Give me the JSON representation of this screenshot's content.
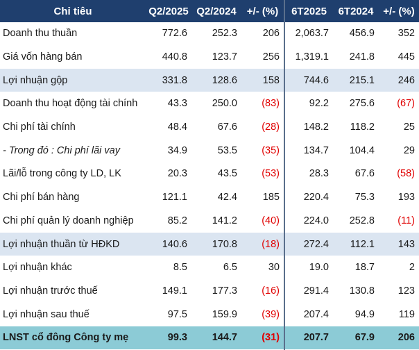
{
  "headers": {
    "name": "Chỉ tiêu",
    "q2_2025": "Q2/2025",
    "q2_2024": "Q2/2024",
    "q_change": "+/- (%)",
    "h1_2025": "6T2025",
    "h1_2024": "6T2024",
    "h_change": "+/- (%)"
  },
  "rows": [
    {
      "name": "Doanh thu thuần",
      "q25": "772.6",
      "q24": "252.3",
      "qc": "206",
      "h25": "2,063.7",
      "h24": "456.9",
      "hc": "352"
    },
    {
      "name": "Giá vốn hàng bán",
      "q25": "440.8",
      "q24": "123.7",
      "qc": "256",
      "h25": "1,319.1",
      "h24": "241.8",
      "hc": "445"
    },
    {
      "name": "Lợi nhuận gộp",
      "q25": "331.8",
      "q24": "128.6",
      "qc": "158",
      "h25": "744.6",
      "h24": "215.1",
      "hc": "246"
    },
    {
      "name": "Doanh thu hoạt động tài chính",
      "q25": "43.3",
      "q24": "250.0",
      "qc": "(83)",
      "h25": "92.2",
      "h24": "275.6",
      "hc": "(67)"
    },
    {
      "name": "Chi phí tài chính",
      "q25": "48.4",
      "q24": "67.6",
      "qc": "(28)",
      "h25": "148.2",
      "h24": "118.2",
      "hc": "25"
    },
    {
      "name": "- Trong đó : Chi phí lãi vay",
      "q25": "34.9",
      "q24": "53.5",
      "qc": "(35)",
      "h25": "134.7",
      "h24": "104.4",
      "hc": "29"
    },
    {
      "name": "Lãi/lỗ trong công ty LD, LK",
      "q25": "20.3",
      "q24": "43.5",
      "qc": "(53)",
      "h25": "28.3",
      "h24": "67.6",
      "hc": "(58)"
    },
    {
      "name": "Chi phí bán hàng",
      "q25": "121.1",
      "q24": "42.4",
      "qc": "185",
      "h25": "220.4",
      "h24": "75.3",
      "hc": "193"
    },
    {
      "name": "Chi phí quản lý doanh nghiệp",
      "q25": "85.2",
      "q24": "141.2",
      "qc": "(40)",
      "h25": "224.0",
      "h24": "252.8",
      "hc": "(11)"
    },
    {
      "name": "Lợi nhuận thuần từ HĐKD",
      "q25": "140.6",
      "q24": "170.8",
      "qc": "(18)",
      "h25": "272.4",
      "h24": "112.1",
      "hc": "143"
    },
    {
      "name": "Lợi nhuận khác",
      "q25": "8.5",
      "q24": "6.5",
      "qc": "30",
      "h25": "19.0",
      "h24": "18.7",
      "hc": "2"
    },
    {
      "name": "Lợi nhuận trước thuế",
      "q25": "149.1",
      "q24": "177.3",
      "qc": "(16)",
      "h25": "291.4",
      "h24": "130.8",
      "hc": "123"
    },
    {
      "name": "Lợi nhuận sau thuế",
      "q25": "97.5",
      "q24": "159.9",
      "qc": "(39)",
      "h25": "207.4",
      "h24": "94.9",
      "hc": "119"
    },
    {
      "name": "LNST cổ đông Công ty mẹ",
      "q25": "99.3",
      "q24": "144.7",
      "qc": "(31)",
      "h25": "207.7",
      "h24": "67.9",
      "hc": "206"
    }
  ],
  "colors": {
    "header_bg": "#1f3f6e",
    "highlight_bg": "#dbe5f1",
    "total_bg": "#8ccbd6",
    "negative": "#e00000"
  }
}
